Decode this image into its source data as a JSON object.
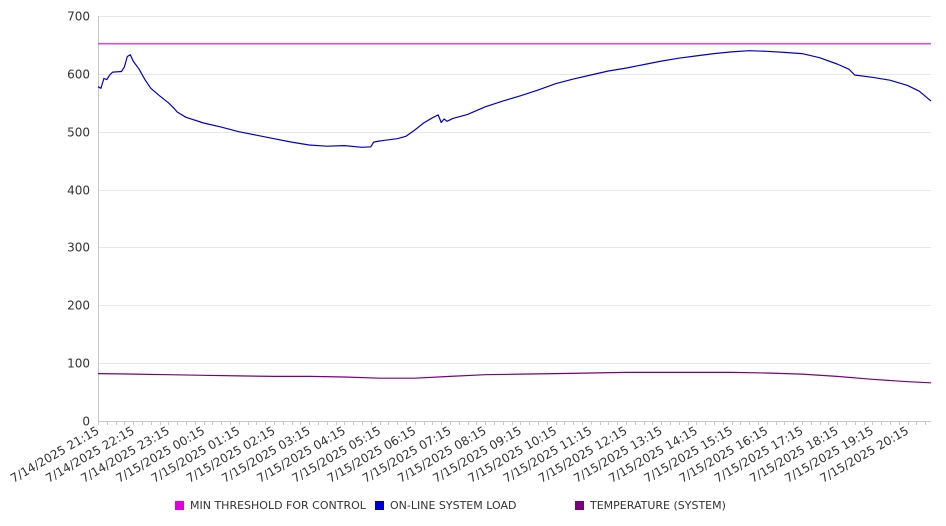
{
  "chart_data": {
    "type": "line",
    "title": "",
    "xlabel": "",
    "ylabel": "",
    "ylim": [
      0,
      700
    ],
    "y_ticks": [
      0,
      100,
      200,
      300,
      400,
      500,
      600,
      700
    ],
    "x_range": [
      "7/14/2025 21:15",
      "7/15/2025 20:55"
    ],
    "x_ticks": [
      "7/14/2025 21:15",
      "7/14/2025 22:15",
      "7/14/2025 23:15",
      "7/15/2025 00:15",
      "7/15/2025 01:15",
      "7/15/2025 02:15",
      "7/15/2025 03:15",
      "7/15/2025 04:15",
      "7/15/2025 05:15",
      "7/15/2025 06:15",
      "7/15/2025 07:15",
      "7/15/2025 08:15",
      "7/15/2025 09:15",
      "7/15/2025 10:15",
      "7/15/2025 11:15",
      "7/15/2025 12:15",
      "7/15/2025 13:15",
      "7/15/2025 14:15",
      "7/15/2025 15:15",
      "7/15/2025 16:15",
      "7/15/2025 17:15",
      "7/15/2025 18:15",
      "7/15/2025 19:15",
      "7/15/2025 20:15"
    ],
    "grid": "horizontal",
    "legend_position": "bottom",
    "series": [
      {
        "name": "MIN THRESHOLD FOR CONTROL",
        "color": "#e000e0",
        "points": [
          [
            "7/14/2025 21:15",
            652
          ],
          [
            "7/15/2025 20:55",
            652
          ]
        ]
      },
      {
        "name": "ON-LINE SYSTEM LOAD",
        "color": "#0000cc",
        "points": [
          [
            "7/14/2025 21:15",
            578
          ],
          [
            "7/14/2025 21:20",
            575
          ],
          [
            "7/14/2025 21:25",
            592
          ],
          [
            "7/14/2025 21:30",
            590
          ],
          [
            "7/14/2025 21:35",
            598
          ],
          [
            "7/14/2025 21:40",
            603
          ],
          [
            "7/14/2025 21:55",
            604
          ],
          [
            "7/14/2025 22:00",
            612
          ],
          [
            "7/14/2025 22:05",
            630
          ],
          [
            "7/14/2025 22:10",
            633
          ],
          [
            "7/14/2025 22:15",
            622
          ],
          [
            "7/14/2025 22:25",
            608
          ],
          [
            "7/14/2025 22:35",
            590
          ],
          [
            "7/14/2025 22:45",
            575
          ],
          [
            "7/14/2025 23:00",
            562
          ],
          [
            "7/14/2025 23:15",
            550
          ],
          [
            "7/14/2025 23:25",
            540
          ],
          [
            "7/14/2025 23:30",
            534
          ],
          [
            "7/14/2025 23:45",
            525
          ],
          [
            "7/15/2025 00:15",
            515
          ],
          [
            "7/15/2025 00:45",
            508
          ],
          [
            "7/15/2025 01:15",
            500
          ],
          [
            "7/15/2025 01:45",
            494
          ],
          [
            "7/15/2025 02:15",
            488
          ],
          [
            "7/15/2025 02:45",
            482
          ],
          [
            "7/15/2025 03:15",
            477
          ],
          [
            "7/15/2025 03:45",
            475
          ],
          [
            "7/15/2025 04:15",
            476
          ],
          [
            "7/15/2025 04:45",
            473
          ],
          [
            "7/15/2025 05:00",
            474
          ],
          [
            "7/15/2025 05:05",
            482
          ],
          [
            "7/15/2025 05:15",
            484
          ],
          [
            "7/15/2025 05:45",
            488
          ],
          [
            "7/15/2025 06:00",
            492
          ],
          [
            "7/15/2025 06:15",
            503
          ],
          [
            "7/15/2025 06:30",
            515
          ],
          [
            "7/15/2025 06:45",
            524
          ],
          [
            "7/15/2025 06:55",
            529
          ],
          [
            "7/15/2025 07:00",
            516
          ],
          [
            "7/15/2025 07:05",
            522
          ],
          [
            "7/15/2025 07:10",
            518
          ],
          [
            "7/15/2025 07:20",
            523
          ],
          [
            "7/15/2025 07:45",
            530
          ],
          [
            "7/15/2025 08:15",
            543
          ],
          [
            "7/15/2025 08:45",
            553
          ],
          [
            "7/15/2025 09:15",
            562
          ],
          [
            "7/15/2025 09:45",
            572
          ],
          [
            "7/15/2025 10:15",
            583
          ],
          [
            "7/15/2025 10:45",
            591
          ],
          [
            "7/15/2025 11:15",
            598
          ],
          [
            "7/15/2025 11:45",
            605
          ],
          [
            "7/15/2025 12:15",
            610
          ],
          [
            "7/15/2025 12:45",
            616
          ],
          [
            "7/15/2025 13:15",
            622
          ],
          [
            "7/15/2025 13:45",
            627
          ],
          [
            "7/15/2025 14:15",
            631
          ],
          [
            "7/15/2025 14:45",
            635
          ],
          [
            "7/15/2025 15:15",
            638
          ],
          [
            "7/15/2025 15:45",
            640
          ],
          [
            "7/15/2025 16:15",
            639
          ],
          [
            "7/15/2025 16:45",
            637
          ],
          [
            "7/15/2025 17:15",
            635
          ],
          [
            "7/15/2025 17:45",
            628
          ],
          [
            "7/15/2025 18:15",
            617
          ],
          [
            "7/15/2025 18:35",
            608
          ],
          [
            "7/15/2025 18:45",
            598
          ],
          [
            "7/15/2025 19:15",
            594
          ],
          [
            "7/15/2025 19:45",
            589
          ],
          [
            "7/15/2025 20:15",
            580
          ],
          [
            "7/15/2025 20:35",
            570
          ],
          [
            "7/15/2025 20:55",
            553
          ]
        ]
      },
      {
        "name": "TEMPERATURE (SYSTEM)",
        "color": "#7a007a",
        "points": [
          [
            "7/14/2025 21:15",
            82
          ],
          [
            "7/14/2025 22:15",
            81
          ],
          [
            "7/14/2025 23:15",
            80
          ],
          [
            "7/15/2025 00:15",
            79
          ],
          [
            "7/15/2025 01:15",
            78
          ],
          [
            "7/15/2025 02:15",
            77
          ],
          [
            "7/15/2025 03:15",
            77
          ],
          [
            "7/15/2025 04:15",
            76
          ],
          [
            "7/15/2025 05:15",
            74
          ],
          [
            "7/15/2025 06:15",
            74
          ],
          [
            "7/15/2025 07:15",
            77
          ],
          [
            "7/15/2025 08:15",
            80
          ],
          [
            "7/15/2025 09:15",
            81
          ],
          [
            "7/15/2025 10:15",
            82
          ],
          [
            "7/15/2025 11:15",
            83
          ],
          [
            "7/15/2025 12:15",
            84
          ],
          [
            "7/15/2025 13:15",
            84
          ],
          [
            "7/15/2025 14:15",
            84
          ],
          [
            "7/15/2025 15:15",
            84
          ],
          [
            "7/15/2025 16:15",
            83
          ],
          [
            "7/15/2025 17:15",
            81
          ],
          [
            "7/15/2025 18:15",
            77
          ],
          [
            "7/15/2025 19:15",
            72
          ],
          [
            "7/15/2025 20:15",
            68
          ],
          [
            "7/15/2025 20:55",
            66
          ]
        ]
      }
    ]
  }
}
